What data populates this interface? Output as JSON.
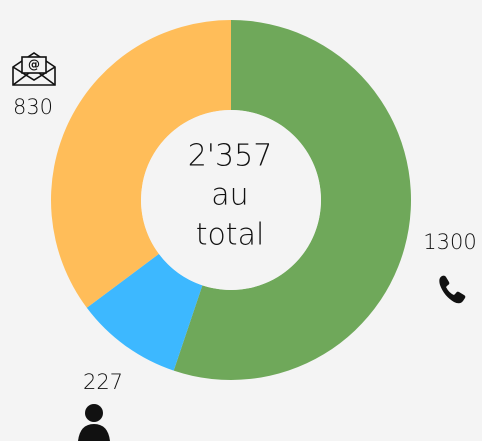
{
  "chart_data": {
    "type": "donut",
    "values": [
      1300,
      227,
      830
    ],
    "colors": [
      "#6fa85a",
      "#3db8ff",
      "#ffbd59"
    ],
    "center_label": [
      "2'357",
      "au",
      "total"
    ]
  }
}
